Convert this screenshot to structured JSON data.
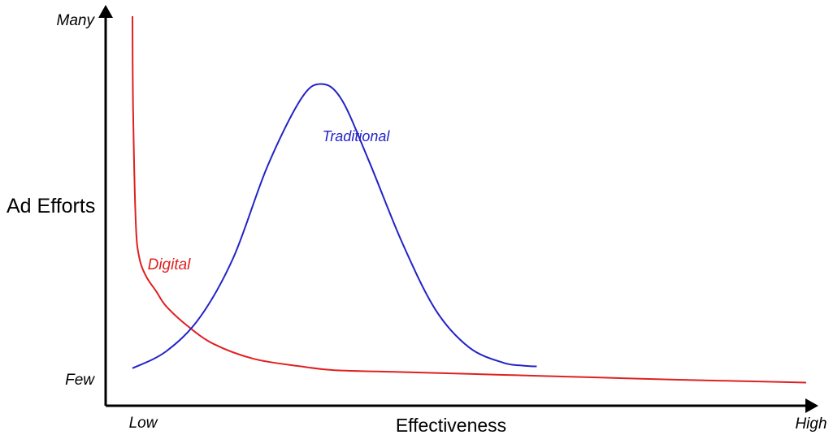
{
  "chart_data": {
    "type": "line",
    "title": "",
    "xlabel": "Effectiveness",
    "ylabel": "Ad Efforts",
    "x_ticks": [
      "Low",
      "High"
    ],
    "y_ticks": [
      "Few",
      "Many"
    ],
    "xlim": [
      0,
      100
    ],
    "ylim": [
      0,
      100
    ],
    "grid": false,
    "legend": "none",
    "series": [
      {
        "name": "Digital",
        "color": "#e02020",
        "points": [
          [
            0,
            100
          ],
          [
            0.1,
            75
          ],
          [
            0.5,
            45
          ],
          [
            1,
            36
          ],
          [
            2,
            31
          ],
          [
            3.5,
            27
          ],
          [
            5,
            23
          ],
          [
            8,
            18
          ],
          [
            12,
            13
          ],
          [
            18,
            9
          ],
          [
            25,
            7
          ],
          [
            30,
            6
          ],
          [
            40,
            5.5
          ],
          [
            50,
            5
          ],
          [
            60,
            4.5
          ],
          [
            70,
            4
          ],
          [
            80,
            3.5
          ],
          [
            90,
            3.1
          ],
          [
            100,
            2.7
          ]
        ]
      },
      {
        "name": "Traditional",
        "color": "#2323c8",
        "points": [
          [
            0,
            6.5
          ],
          [
            5,
            11
          ],
          [
            10,
            20
          ],
          [
            15,
            36
          ],
          [
            20,
            60
          ],
          [
            25,
            78
          ],
          [
            28,
            82
          ],
          [
            31,
            78
          ],
          [
            35,
            62
          ],
          [
            40,
            40
          ],
          [
            45,
            22
          ],
          [
            50,
            12
          ],
          [
            55,
            8
          ],
          [
            58,
            7.2
          ],
          [
            60,
            7
          ]
        ]
      }
    ]
  }
}
